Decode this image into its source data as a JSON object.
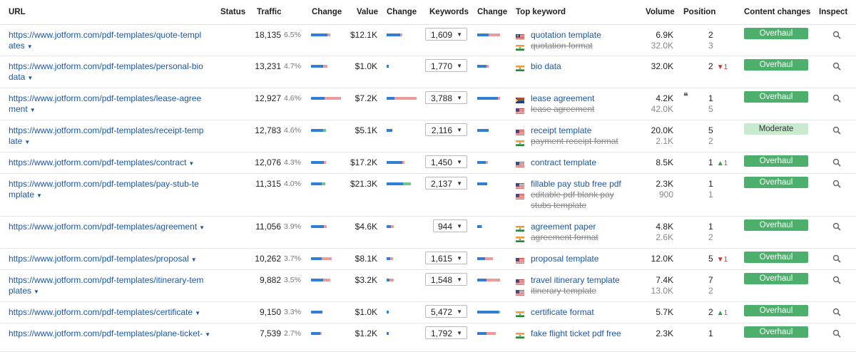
{
  "columns": {
    "url": "URL",
    "status": "Status",
    "traffic": "Traffic",
    "change": "Change",
    "value": "Value",
    "change2": "Change",
    "keywords": "Keywords",
    "change3": "Change",
    "top_keyword": "Top keyword",
    "volume": "Volume",
    "position": "Position",
    "content_changes": "Content changes",
    "inspect": "Inspect"
  },
  "rows": [
    {
      "url1": "https://www.jotform.com/pdf-templates/quote-templ",
      "url2": "ates",
      "traffic": "18,135",
      "pct": "6.5%",
      "value": "$12.1K",
      "keywords": "1,609",
      "kw1": "quotation template",
      "kw2": "quotation format",
      "kw3": "",
      "vol1": "6.9K",
      "vol2": "32.0K",
      "pos1": "2",
      "pos2": "3",
      "delta": "",
      "delta_dir": "",
      "quote": "",
      "content": "Overhaul",
      "flag1": "my",
      "flag2": "in",
      "tb": [
        0.55,
        0.1,
        0
      ],
      "vb": [
        0.45,
        0.08,
        0
      ],
      "cb": [
        0.5,
        0.5,
        0
      ]
    },
    {
      "url1": "https://www.jotform.com/pdf-templates/personal-bio",
      "url2": "data",
      "traffic": "13,231",
      "pct": "4.7%",
      "value": "$1.0K",
      "keywords": "1,770",
      "kw1": "bio data",
      "kw2": "",
      "kw3": "",
      "vol1": "32.0K",
      "vol2": "",
      "pos1": "2",
      "pos2": "",
      "delta": "1",
      "delta_dir": "down",
      "quote": "",
      "content": "Overhaul",
      "flag1": "in",
      "flag2": "",
      "tb": [
        0.4,
        0.15,
        0
      ],
      "vb": [
        0.08,
        0,
        0
      ],
      "cb": [
        0.4,
        0.1,
        0
      ]
    },
    {
      "url1": "https://www.jotform.com/pdf-templates/lease-agree",
      "url2": "ment",
      "traffic": "12,927",
      "pct": "4.6%",
      "value": "$7.2K",
      "keywords": "3,788",
      "kw1": "lease agreement",
      "kw2": "lease agreement",
      "kw3": "",
      "vol1": "4.2K",
      "vol2": "42.0K",
      "pos1": "1",
      "pos2": "5",
      "delta": "",
      "delta_dir": "",
      "quote": "❝",
      "content": "Overhaul",
      "flag1": "za",
      "flag2": "us",
      "tb": [
        0.45,
        0.55,
        0
      ],
      "vb": [
        0.25,
        0.75,
        0
      ],
      "cb": [
        0.9,
        0.1,
        0
      ]
    },
    {
      "url1": "https://www.jotform.com/pdf-templates/receipt-temp",
      "url2": "late",
      "traffic": "12,783",
      "pct": "4.6%",
      "value": "$5.1K",
      "keywords": "2,116",
      "kw1": "receipt template",
      "kw2": "payment receipt format",
      "kw3": "",
      "vol1": "20.0K",
      "vol2": "2.1K",
      "pos1": "5",
      "pos2": "2",
      "delta": "",
      "delta_dir": "",
      "quote": "",
      "content": "Moderate",
      "flag1": "us",
      "flag2": "in",
      "tb": [
        0.4,
        0,
        0.1
      ],
      "vb": [
        0.18,
        0,
        0
      ],
      "cb": [
        0.5,
        0,
        0
      ]
    },
    {
      "url1": "https://www.jotform.com/pdf-templates/contract",
      "url2": "",
      "traffic": "12,076",
      "pct": "4.3%",
      "value": "$17.2K",
      "keywords": "1,450",
      "kw1": "contract template",
      "kw2": "",
      "kw3": "",
      "vol1": "8.5K",
      "vol2": "",
      "pos1": "1",
      "pos2": "",
      "delta": "1",
      "delta_dir": "up",
      "quote": "",
      "content": "Overhaul",
      "flag1": "us",
      "flag2": "",
      "tb": [
        0.42,
        0.08,
        0
      ],
      "vb": [
        0.52,
        0.08,
        0
      ],
      "cb": [
        0.38,
        0.08,
        0
      ]
    },
    {
      "url1": "https://www.jotform.com/pdf-templates/pay-stub-te",
      "url2": "mplate",
      "traffic": "11,315",
      "pct": "4.0%",
      "value": "$21.3K",
      "keywords": "2,137",
      "kw1": "fillable pay stub free pdf",
      "kw2": "editable pdf blank pay",
      "kw3": "stubs template",
      "vol1": "2.3K",
      "vol2": "900",
      "pos1": "1",
      "pos2": "1",
      "delta": "",
      "delta_dir": "",
      "quote": "",
      "content": "Overhaul",
      "flag1": "us",
      "flag2": "us",
      "tb": [
        0.35,
        0,
        0.12
      ],
      "vb": [
        0.55,
        0,
        0.25
      ],
      "cb": [
        0.45,
        0,
        0
      ]
    },
    {
      "url1": "https://www.jotform.com/pdf-templates/agreement",
      "url2": "",
      "traffic": "11,056",
      "pct": "3.9%",
      "value": "$4.6K",
      "keywords": "944",
      "kw1": "agreement paper",
      "kw2": "agreement format",
      "kw3": "",
      "vol1": "4.8K",
      "vol2": "2.6K",
      "pos1": "1",
      "pos2": "2",
      "delta": "",
      "delta_dir": "",
      "quote": "",
      "content": "Overhaul",
      "flag1": "in",
      "flag2": "in",
      "tb": [
        0.42,
        0.1,
        0
      ],
      "vb": [
        0.15,
        0.08,
        0
      ],
      "cb": [
        0.18,
        0.05,
        0
      ]
    },
    {
      "url1": "https://www.jotform.com/pdf-templates/proposal",
      "url2": "",
      "traffic": "10,262",
      "pct": "3.7%",
      "value": "$8.1K",
      "keywords": "1,615",
      "kw1": "proposal template",
      "kw2": "",
      "kw3": "",
      "vol1": "12.0K",
      "vol2": "",
      "pos1": "5",
      "pos2": "",
      "delta": "1",
      "delta_dir": "down",
      "quote": "",
      "content": "Overhaul",
      "flag1": "us",
      "flag2": "",
      "tb": [
        0.35,
        0.35,
        0
      ],
      "vb": [
        0.12,
        0.1,
        0
      ],
      "cb": [
        0.35,
        0.35,
        0
      ]
    },
    {
      "url1": "https://www.jotform.com/pdf-templates/itinerary-tem",
      "url2": "plates",
      "traffic": "9,882",
      "pct": "3.5%",
      "value": "$3.2K",
      "keywords": "1,548",
      "kw1": "travel itinerary template",
      "kw2": "itinerary template",
      "kw3": "",
      "vol1": "7.4K",
      "vol2": "13.0K",
      "pos1": "7",
      "pos2": "2",
      "delta": "",
      "delta_dir": "",
      "quote": "",
      "content": "Overhaul",
      "flag1": "us",
      "flag2": "us",
      "tb": [
        0.4,
        0.25,
        0
      ],
      "vb": [
        0.1,
        0.15,
        0
      ],
      "cb": [
        0.4,
        0.6,
        0
      ]
    },
    {
      "url1": "https://www.jotform.com/pdf-templates/certificate",
      "url2": "",
      "traffic": "9,150",
      "pct": "3.3%",
      "value": "$1.0K",
      "keywords": "5,472",
      "kw1": "certificate format",
      "kw2": "",
      "kw3": "",
      "vol1": "5.7K",
      "vol2": "",
      "pos1": "2",
      "pos2": "",
      "delta": "1",
      "delta_dir": "up",
      "quote": "",
      "content": "Overhaul",
      "flag1": "in",
      "flag2": "",
      "tb": [
        0.38,
        0,
        0
      ],
      "vb": [
        0.06,
        0,
        0
      ],
      "cb": [
        0.95,
        0,
        0.05
      ]
    },
    {
      "url1": "https://www.jotform.com/pdf-templates/plane-ticket-",
      "url2": "",
      "traffic": "7,539",
      "pct": "2.7%",
      "value": "$1.2K",
      "keywords": "1,792",
      "kw1": "fake flight ticket pdf free",
      "kw2": "",
      "kw3": "",
      "vol1": "2.3K",
      "vol2": "",
      "pos1": "1",
      "pos2": "",
      "delta": "",
      "delta_dir": "",
      "quote": "",
      "content": "Overhaul",
      "flag1": "in",
      "flag2": "",
      "tb": [
        0.3,
        0.05,
        0
      ],
      "vb": [
        0.08,
        0,
        0
      ],
      "cb": [
        0.4,
        0.4,
        0
      ]
    }
  ]
}
